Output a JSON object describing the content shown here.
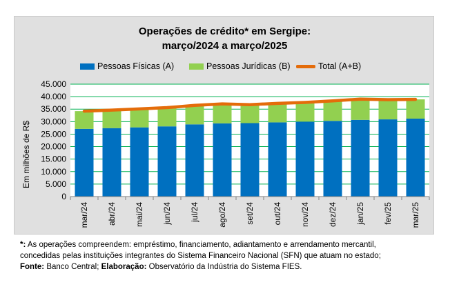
{
  "chart_data": {
    "type": "bar",
    "title_line1": "Operações de crédito* em Sergipe:",
    "title_line2": "março/2024 a março/2025",
    "ylabel": "Em milhões de R$",
    "xlabel": "",
    "ylim": [
      0,
      45000
    ],
    "yticks": [
      "0",
      "5.000",
      "10.000",
      "15.000",
      "20.000",
      "25.000",
      "30.000",
      "35.000",
      "40.000",
      "45.000"
    ],
    "ytick_values": [
      0,
      5000,
      10000,
      15000,
      20000,
      25000,
      30000,
      35000,
      40000,
      45000
    ],
    "categories": [
      "mar/24",
      "abr/24",
      "mai/24",
      "jun/24",
      "jul/24",
      "ago/24",
      "set/24",
      "out/24",
      "nov/24",
      "dez/24",
      "jan/25",
      "fev/25",
      "mar/25"
    ],
    "grid": true,
    "legend_position": "top",
    "series": [
      {
        "name": "Pessoas Físicas (A)",
        "type": "bar-stacked",
        "color": "#0070c0",
        "values": [
          27100,
          27400,
          27700,
          28100,
          28900,
          29300,
          29400,
          29700,
          30000,
          30300,
          30700,
          30900,
          31200
        ]
      },
      {
        "name": "Pessoas Jurídicas (B)",
        "type": "bar-stacked",
        "color": "#92d050",
        "values": [
          7100,
          7200,
          7400,
          7500,
          7600,
          7800,
          7400,
          7600,
          7700,
          8000,
          8300,
          7900,
          7700
        ]
      },
      {
        "name": "Total (A+B)",
        "type": "line",
        "color": "#e46c0a",
        "values": [
          34200,
          34600,
          35100,
          35600,
          36500,
          37100,
          36800,
          37300,
          37700,
          38300,
          39000,
          38800,
          38900
        ]
      }
    ]
  },
  "footnote": {
    "note_marker": "*:",
    "note_text": " As operações compreendem: empréstimo, financiamento, adiantamento e arrendamento mercantil,",
    "note_line2": "concedidas pelas instituições integrantes do Sistema Financeiro Nacional (SFN) que atuam no estado;",
    "source_label": "Fonte:",
    "source_text": " Banco Central; ",
    "elab_label": "Elaboração:",
    "elab_text": " Observatório da Indústria do Sistema FIES."
  }
}
